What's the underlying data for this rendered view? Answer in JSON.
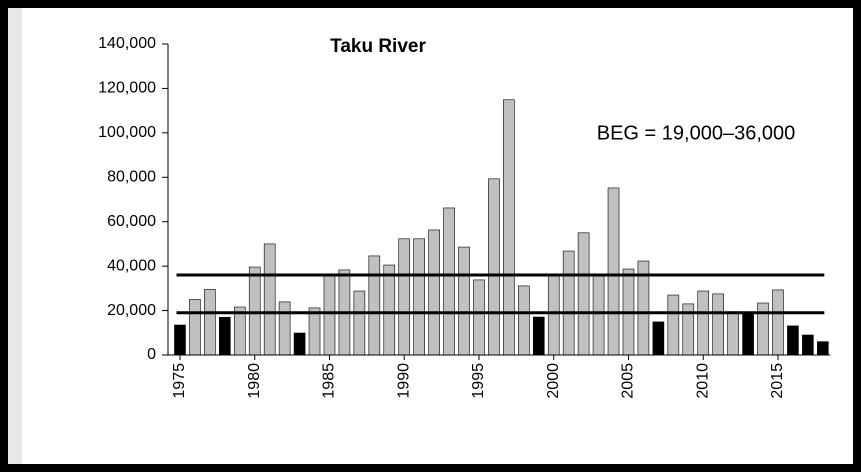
{
  "chart_data": {
    "type": "bar",
    "title": "Taku River",
    "annotation": "BEG = 19,000–36,000",
    "categories": [
      "1975",
      null,
      null,
      null,
      null,
      "1980",
      null,
      null,
      null,
      null,
      "1985",
      null,
      null,
      null,
      null,
      "1990",
      null,
      null,
      null,
      null,
      "1995",
      null,
      null,
      null,
      null,
      "2000",
      null,
      null,
      null,
      null,
      "2005",
      null,
      null,
      null,
      null,
      "2010",
      null,
      null,
      null,
      null,
      "2015",
      null,
      null,
      null
    ],
    "values": [
      13500,
      25000,
      29500,
      17000,
      21600,
      39600,
      50000,
      23900,
      9900,
      21200,
      36500,
      38300,
      28800,
      44600,
      40500,
      52300,
      52300,
      56300,
      66200,
      48600,
      33800,
      79300,
      114900,
      31100,
      17100,
      36000,
      46800,
      55000,
      36500,
      75200,
      38700,
      42300,
      14900,
      27000,
      23000,
      28800,
      27500,
      19500,
      19000,
      23400,
      29300,
      13100,
      9000,
      6000
    ],
    "colors": [
      "#000000",
      "#c0c0c0",
      "#c0c0c0",
      "#000000",
      "#c0c0c0",
      "#c0c0c0",
      "#c0c0c0",
      "#c0c0c0",
      "#000000",
      "#c0c0c0",
      "#c0c0c0",
      "#c0c0c0",
      "#c0c0c0",
      "#c0c0c0",
      "#c0c0c0",
      "#c0c0c0",
      "#c0c0c0",
      "#c0c0c0",
      "#c0c0c0",
      "#c0c0c0",
      "#c0c0c0",
      "#c0c0c0",
      "#c0c0c0",
      "#c0c0c0",
      "#000000",
      "#c0c0c0",
      "#c0c0c0",
      "#c0c0c0",
      "#c0c0c0",
      "#c0c0c0",
      "#c0c0c0",
      "#c0c0c0",
      "#000000",
      "#c0c0c0",
      "#c0c0c0",
      "#c0c0c0",
      "#c0c0c0",
      "#c0c0c0",
      "#000000",
      "#c0c0c0",
      "#c0c0c0",
      "#000000",
      "#000000",
      "#000000"
    ],
    "reference_lines": [
      19000,
      36000
    ],
    "ylim": [
      0,
      140000
    ],
    "yticks": [
      0,
      {
        "value": 20000,
        "label": "20,000"
      },
      {
        "value": 40000,
        "label": "40,000"
      },
      {
        "value": 60000,
        "label": "60,000"
      },
      {
        "value": 80000,
        "label": "80,000"
      },
      {
        "value": 100000,
        "label": "100,000"
      },
      {
        "value": 120000,
        "label": "120,000"
      },
      {
        "value": 140000,
        "label": "140,000"
      }
    ]
  }
}
